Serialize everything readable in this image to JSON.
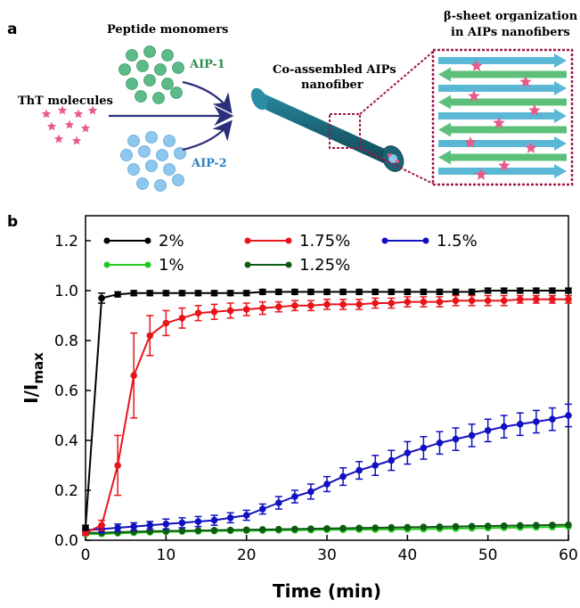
{
  "panel_a": {
    "letter": "a",
    "peptide_monomers": "Peptide monomers",
    "tht_molecules": "ThT molecules",
    "aip1": "AIP-1",
    "aip2": "AIP-2",
    "nanofiber_line1": "Co-assembled AIPs",
    "nanofiber_line2": "nanofiber",
    "beta_line1": "β-sheet organization",
    "beta_line2": "in AIPs nanofibers",
    "colors": {
      "aip1": "#5dbb8a",
      "aip2": "#8ec8ee",
      "fiber": "#1e6e80",
      "star": "#e85a8a",
      "arrow": "#2a2f7a",
      "box": "#a0184c"
    }
  },
  "panel_b": {
    "letter": "b"
  },
  "chart_data": {
    "type": "line",
    "xlabel": "Time (min)",
    "ylabel_main": "I/I",
    "ylabel_sub": "max",
    "xlim": [
      0,
      60
    ],
    "ylim": [
      0,
      1.3
    ],
    "xticks": [
      0,
      10,
      20,
      30,
      40,
      50,
      60
    ],
    "yticks": [
      0.0,
      0.2,
      0.4,
      0.6,
      0.8,
      1.0,
      1.2
    ],
    "legend_position": "top",
    "x": [
      0,
      2,
      4,
      6,
      8,
      10,
      12,
      14,
      16,
      18,
      20,
      22,
      24,
      26,
      28,
      30,
      32,
      34,
      36,
      38,
      40,
      42,
      44,
      46,
      48,
      50,
      52,
      54,
      56,
      58,
      60
    ],
    "series": [
      {
        "name": "2%",
        "color": "#000000",
        "values": [
          0.05,
          0.97,
          0.985,
          0.99,
          0.99,
          0.99,
          0.99,
          0.99,
          0.99,
          0.99,
          0.99,
          0.995,
          0.995,
          0.995,
          0.995,
          0.995,
          0.995,
          0.995,
          0.995,
          0.995,
          0.995,
          0.995,
          0.995,
          0.995,
          0.995,
          1.0,
          1.0,
          1.0,
          1.0,
          1.0,
          1.0
        ],
        "errors": [
          0.01,
          0.02,
          0.01,
          0.01,
          0.01,
          0.01,
          0.01,
          0.01,
          0.01,
          0.01,
          0.01,
          0.01,
          0.01,
          0.01,
          0.01,
          0.01,
          0.01,
          0.01,
          0.01,
          0.01,
          0.01,
          0.01,
          0.01,
          0.01,
          0.01,
          0.01,
          0.01,
          0.01,
          0.01,
          0.01,
          0.01
        ]
      },
      {
        "name": "1.75%",
        "color": "#e8141b",
        "values": [
          0.03,
          0.06,
          0.3,
          0.66,
          0.82,
          0.87,
          0.89,
          0.91,
          0.915,
          0.92,
          0.925,
          0.93,
          0.935,
          0.94,
          0.94,
          0.945,
          0.945,
          0.945,
          0.95,
          0.95,
          0.955,
          0.955,
          0.955,
          0.96,
          0.96,
          0.96,
          0.96,
          0.965,
          0.965,
          0.965,
          0.965
        ],
        "errors": [
          0.01,
          0.02,
          0.12,
          0.17,
          0.08,
          0.05,
          0.04,
          0.03,
          0.03,
          0.03,
          0.025,
          0.025,
          0.02,
          0.02,
          0.02,
          0.02,
          0.02,
          0.02,
          0.02,
          0.02,
          0.02,
          0.02,
          0.02,
          0.02,
          0.02,
          0.02,
          0.02,
          0.015,
          0.015,
          0.015,
          0.015
        ]
      },
      {
        "name": "1.5%",
        "color": "#1010c0",
        "values": [
          0.04,
          0.045,
          0.05,
          0.055,
          0.06,
          0.065,
          0.07,
          0.075,
          0.08,
          0.09,
          0.1,
          0.125,
          0.15,
          0.175,
          0.195,
          0.225,
          0.255,
          0.28,
          0.3,
          0.32,
          0.35,
          0.37,
          0.39,
          0.405,
          0.42,
          0.44,
          0.455,
          0.465,
          0.475,
          0.485,
          0.5
        ],
        "errors": [
          0.01,
          0.015,
          0.015,
          0.015,
          0.015,
          0.02,
          0.02,
          0.02,
          0.02,
          0.02,
          0.02,
          0.02,
          0.025,
          0.025,
          0.03,
          0.03,
          0.035,
          0.035,
          0.04,
          0.04,
          0.045,
          0.045,
          0.045,
          0.045,
          0.045,
          0.045,
          0.045,
          0.045,
          0.045,
          0.045,
          0.045
        ]
      },
      {
        "name": "1%",
        "color": "#22c81e",
        "values": [
          0.025,
          0.025,
          0.028,
          0.03,
          0.032,
          0.034,
          0.035,
          0.036,
          0.037,
          0.038,
          0.038,
          0.039,
          0.04,
          0.04,
          0.041,
          0.042,
          0.042,
          0.043,
          0.043,
          0.044,
          0.044,
          0.045,
          0.046,
          0.047,
          0.048,
          0.049,
          0.05,
          0.051,
          0.052,
          0.053,
          0.055
        ],
        "errors": [
          0.005,
          0.005,
          0.005,
          0.005,
          0.005,
          0.005,
          0.005,
          0.005,
          0.005,
          0.005,
          0.005,
          0.005,
          0.005,
          0.005,
          0.005,
          0.005,
          0.005,
          0.005,
          0.005,
          0.005,
          0.005,
          0.005,
          0.005,
          0.005,
          0.005,
          0.005,
          0.005,
          0.005,
          0.005,
          0.005,
          0.005
        ]
      },
      {
        "name": "1.25%",
        "color": "#0d5a12",
        "values": [
          0.03,
          0.03,
          0.032,
          0.034,
          0.036,
          0.037,
          0.038,
          0.039,
          0.04,
          0.041,
          0.042,
          0.043,
          0.044,
          0.045,
          0.046,
          0.047,
          0.048,
          0.049,
          0.05,
          0.051,
          0.052,
          0.053,
          0.054,
          0.055,
          0.056,
          0.057,
          0.058,
          0.059,
          0.06,
          0.061,
          0.062
        ],
        "errors": [
          0.005,
          0.005,
          0.005,
          0.005,
          0.005,
          0.005,
          0.005,
          0.005,
          0.005,
          0.005,
          0.005,
          0.005,
          0.005,
          0.005,
          0.005,
          0.005,
          0.005,
          0.005,
          0.005,
          0.005,
          0.005,
          0.005,
          0.005,
          0.005,
          0.005,
          0.005,
          0.005,
          0.005,
          0.005,
          0.005,
          0.005
        ]
      }
    ]
  }
}
